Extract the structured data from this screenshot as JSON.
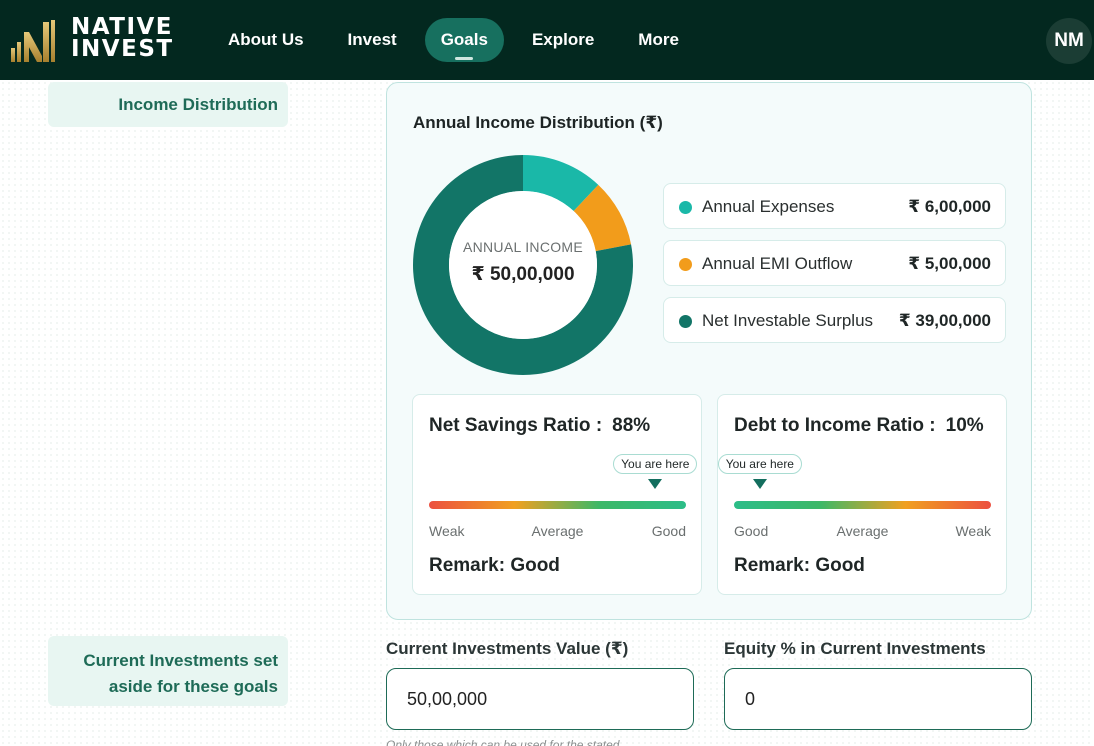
{
  "header": {
    "logo_line1": "NATIVE",
    "logo_line2": "INVEST",
    "nav": [
      {
        "label": "About Us",
        "active": false
      },
      {
        "label": "Invest",
        "active": false
      },
      {
        "label": "Goals",
        "active": true
      },
      {
        "label": "Explore",
        "active": false
      },
      {
        "label": "More",
        "active": false
      }
    ],
    "avatar_initials": "NM"
  },
  "sections": {
    "income_label": "Income Distribution",
    "investments_label_line1": "Current Investments set",
    "investments_label_line2": "aside for these goals"
  },
  "panel": {
    "title": "Annual Income Distribution (₹)",
    "center_label": "ANNUAL INCOME",
    "center_value": "₹ 50,00,000",
    "legend": [
      {
        "name": "Annual Expenses",
        "value": "₹ 6,00,000",
        "color": "#1ab8a8"
      },
      {
        "name": "Annual EMI Outflow",
        "value": "₹ 5,00,000",
        "color": "#f29c1b"
      },
      {
        "name": "Net Investable Surplus",
        "value": "₹ 39,00,000",
        "color": "#127567"
      }
    ]
  },
  "chart_data": {
    "type": "pie",
    "categories": [
      "Annual Expenses",
      "Annual EMI Outflow",
      "Net Investable Surplus"
    ],
    "values": [
      600000,
      500000,
      3900000
    ],
    "colors": [
      "#1ab8a8",
      "#f29c1b",
      "#127567"
    ],
    "title": "Annual Income Distribution (₹)"
  },
  "ratios": [
    {
      "title": "Net Savings Ratio :",
      "value": "88%",
      "marker_label": "You are here",
      "marker_fraction": 0.88,
      "scale": [
        "Weak",
        "Average",
        "Good"
      ],
      "remark": "Remark: Good"
    },
    {
      "title": "Debt to Income Ratio :",
      "value": "10%",
      "marker_label": "You are here",
      "marker_fraction": 0.1,
      "scale": [
        "Good",
        "Average",
        "Weak"
      ],
      "remark": "Remark: Good"
    }
  ],
  "form": {
    "current_value_label": "Current Investments Value (₹)",
    "current_value": "50,00,000",
    "equity_label": "Equity % in Current Investments",
    "equity_value": "0",
    "hint": "Only those which can be used for the stated"
  },
  "colors": {
    "header_bg": "#03281f",
    "accent": "#17705f",
    "logo_gold": "#c9a24a"
  }
}
